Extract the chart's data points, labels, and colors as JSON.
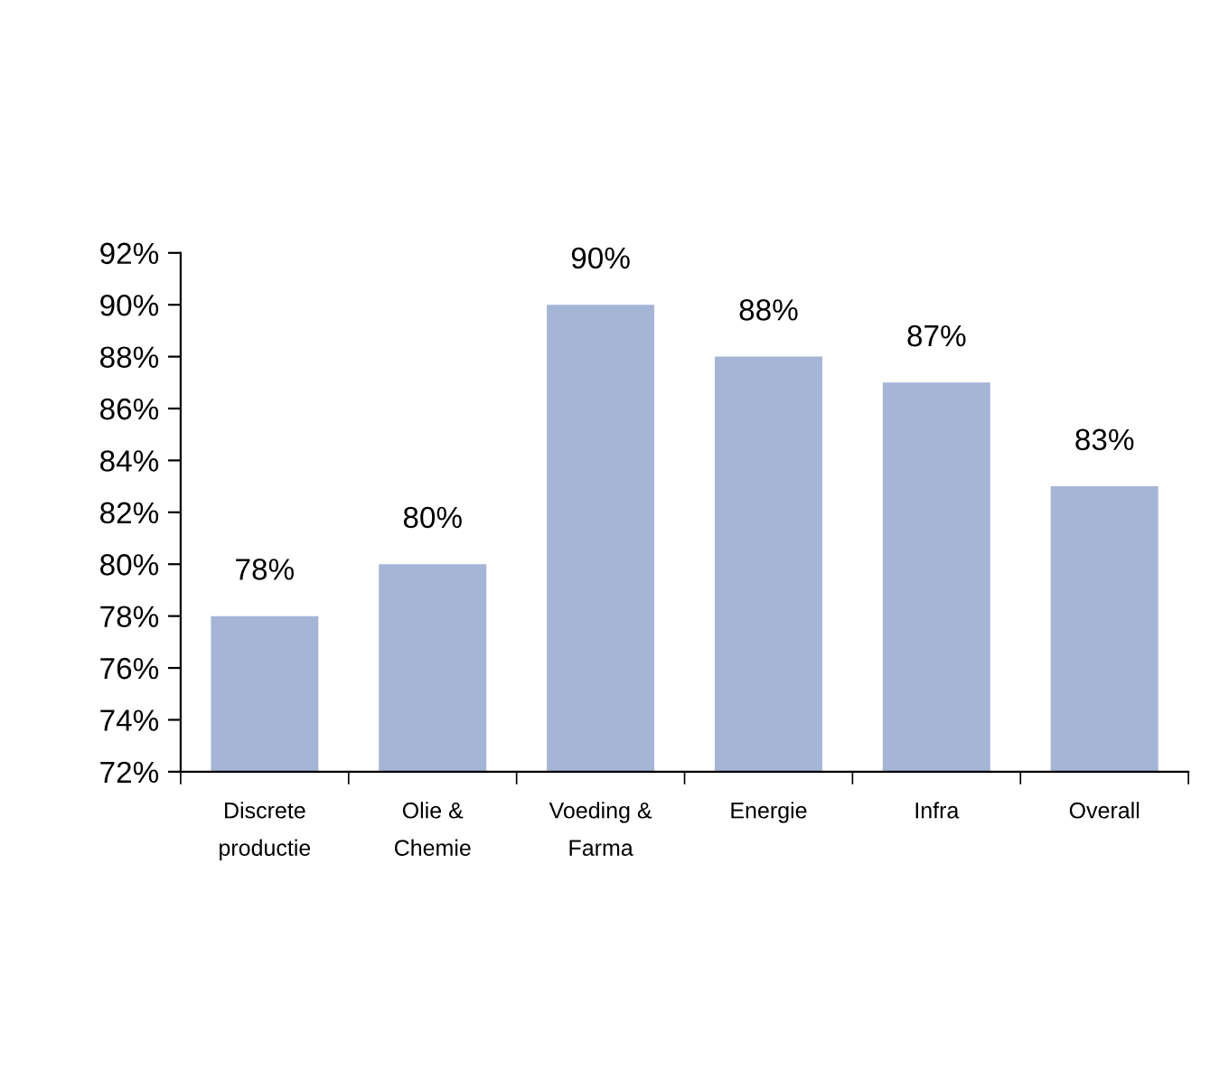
{
  "chart_data": {
    "type": "bar",
    "categories": [
      "Discrete\nproductie",
      "Olie &\nChemie",
      "Voeding &\nFarma",
      "Energie",
      "Infra",
      "Overall"
    ],
    "values": [
      78,
      80,
      90,
      88,
      87,
      83
    ],
    "value_labels": [
      "78%",
      "80%",
      "90%",
      "88%",
      "87%",
      "83%"
    ],
    "color": "#a5b5d6",
    "ylim": [
      72,
      92
    ],
    "yticks": [
      {
        "value": 72,
        "label": "72%"
      },
      {
        "value": 74,
        "label": "74%"
      },
      {
        "value": 76,
        "label": "76%"
      },
      {
        "value": 78,
        "label": "78%"
      },
      {
        "value": 80,
        "label": "80%"
      },
      {
        "value": 82,
        "label": "82%"
      },
      {
        "value": 84,
        "label": "84%"
      },
      {
        "value": 86,
        "label": "86%"
      },
      {
        "value": 88,
        "label": "88%"
      },
      {
        "value": 90,
        "label": "90%"
      },
      {
        "value": 92,
        "label": "92%"
      }
    ],
    "grid": false,
    "legend": false
  }
}
